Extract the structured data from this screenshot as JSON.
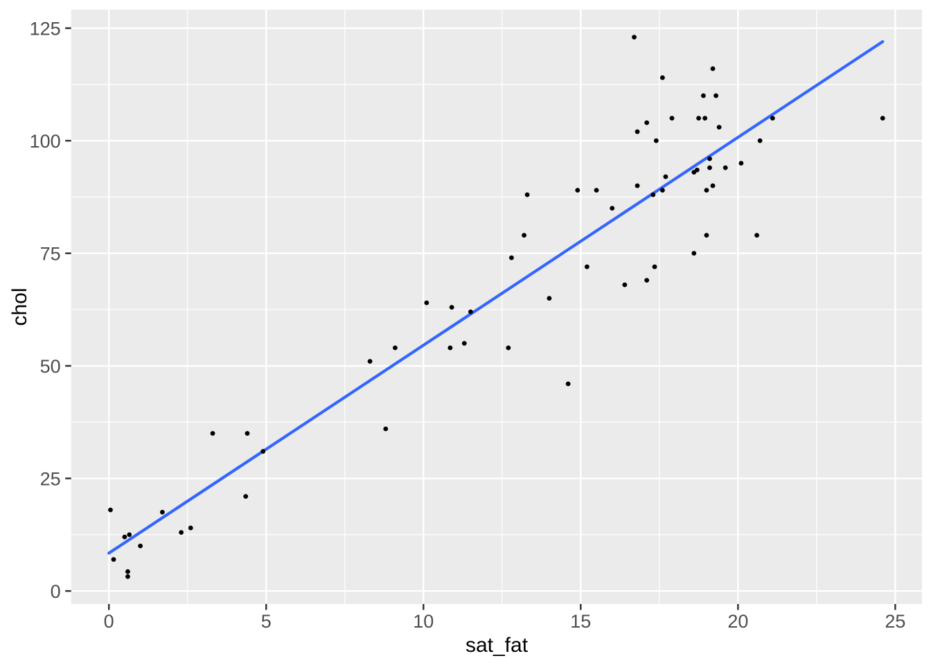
{
  "figure": {
    "background": "#FFFFFF"
  },
  "chart_data": {
    "type": "scatter",
    "title": "",
    "xlabel": "sat_fat",
    "ylabel": "chol",
    "x_ticks": [
      0,
      5,
      10,
      15,
      20,
      25
    ],
    "y_ticks": [
      0,
      25,
      50,
      75,
      100,
      125
    ],
    "x_minor_gridlines": [
      2.5,
      7.5,
      12.5,
      17.5,
      22.5
    ],
    "y_minor_gridlines": [
      12.5,
      37.5,
      62.5,
      87.5,
      112.5
    ],
    "xlim": [
      -1.2,
      25.85
    ],
    "ylim": [
      -2.9,
      129.1
    ],
    "grid": "on",
    "legend": "none",
    "points": [
      [
        0.05,
        18
      ],
      [
        0.15,
        7
      ],
      [
        0.5,
        12
      ],
      [
        0.65,
        12.5
      ],
      [
        0.6,
        4.3
      ],
      [
        0.6,
        3.2
      ],
      [
        1.0,
        10
      ],
      [
        1.7,
        17.5
      ],
      [
        2.3,
        13
      ],
      [
        2.6,
        14
      ],
      [
        3.3,
        35
      ],
      [
        4.35,
        21
      ],
      [
        4.4,
        35
      ],
      [
        4.9,
        31
      ],
      [
        8.3,
        51
      ],
      [
        8.8,
        36
      ],
      [
        9.1,
        54
      ],
      [
        10.1,
        64
      ],
      [
        10.85,
        54
      ],
      [
        10.9,
        63
      ],
      [
        11.3,
        55
      ],
      [
        11.5,
        62
      ],
      [
        12.7,
        54
      ],
      [
        12.8,
        74
      ],
      [
        13.2,
        79
      ],
      [
        13.3,
        88
      ],
      [
        14.0,
        65
      ],
      [
        14.6,
        46
      ],
      [
        14.9,
        89
      ],
      [
        15.2,
        72
      ],
      [
        15.5,
        89
      ],
      [
        16.0,
        85
      ],
      [
        16.4,
        68
      ],
      [
        16.7,
        123
      ],
      [
        16.8,
        90
      ],
      [
        16.8,
        102
      ],
      [
        17.1,
        69
      ],
      [
        17.1,
        104
      ],
      [
        17.3,
        88
      ],
      [
        17.35,
        72
      ],
      [
        17.4,
        100
      ],
      [
        17.6,
        89
      ],
      [
        17.6,
        114
      ],
      [
        17.7,
        92
      ],
      [
        17.9,
        105
      ],
      [
        18.6,
        75
      ],
      [
        18.6,
        93
      ],
      [
        18.7,
        93.5
      ],
      [
        18.75,
        105
      ],
      [
        18.95,
        105
      ],
      [
        18.9,
        110
      ],
      [
        19.0,
        79
      ],
      [
        19.0,
        89
      ],
      [
        19.1,
        94
      ],
      [
        19.1,
        96
      ],
      [
        19.2,
        90
      ],
      [
        19.2,
        116
      ],
      [
        19.3,
        110
      ],
      [
        19.4,
        103
      ],
      [
        19.6,
        94
      ],
      [
        20.1,
        95
      ],
      [
        20.6,
        79
      ],
      [
        20.7,
        100
      ],
      [
        21.1,
        105
      ],
      [
        24.6,
        105
      ]
    ],
    "trend_line": {
      "type": "linear",
      "x1": 0,
      "y1": 8.4,
      "x2": 24.6,
      "y2": 122.0,
      "intercept": 8.4,
      "slope": 4.62
    },
    "colors": {
      "panel": "#EBEBEB",
      "grid": "#FFFFFF",
      "point": "#000000",
      "trend": "#3366FF",
      "tick_label": "#4D4D4D",
      "axis_title": "#000000",
      "tick_mark": "#333333"
    }
  }
}
